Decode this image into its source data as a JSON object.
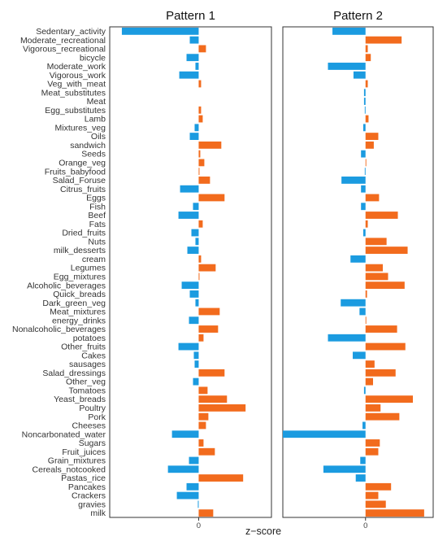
{
  "chart_data": {
    "type": "bar",
    "orientation": "horizontal",
    "xlabel": "z−score",
    "x_tick_label": "0",
    "grid": false,
    "colors": {
      "positive": "#f26b1d",
      "negative": "#1b9be0"
    },
    "categories": [
      "Sedentary_activity",
      "Moderate_recreational",
      "Vigorous_recreational",
      "bicycle",
      "Moderate_work",
      "Vigorous_work",
      "Veg_with_meat",
      "Meat_substitutes",
      "Meat",
      "Egg_substitutes",
      "Lamb",
      "Mixtures_veg",
      "Oils",
      "sandwich",
      "Seeds",
      "Orange_veg",
      "Fruits_babyfood",
      "Salad_Foruse",
      "Citrus_fruits",
      "Eggs",
      "Fish",
      "Beef",
      "Fats",
      "Dried_fruits",
      "Nuts",
      "milk_desserts",
      "cream",
      "Legumes",
      "Egg_mixtures",
      "Alcoholic_beverages",
      "Quick_breads",
      "Dark_green_veg",
      "Meat_mixtures",
      "energy_drinks",
      "Nonalcoholic_beverages",
      "potatoes",
      "Other_fruits",
      "Cakes",
      "sausages",
      "Salad_dressings",
      "Other_veg",
      "Tomatoes",
      "Yeast_breads",
      "Poultry",
      "Pork",
      "Cheeses",
      "Noncarbonated_water",
      "Sugars",
      "Fruit_juices",
      "Grain_mixtures",
      "Cereals_notcooked",
      "Pastas_rice",
      "Pancakes",
      "Crackers",
      "gravies",
      "milk"
    ],
    "panels": [
      {
        "title": "Pattern 1",
        "xlim": [
          -1.1,
          0.9
        ],
        "values": [
          -0.95,
          -0.11,
          0.09,
          -0.15,
          -0.04,
          -0.24,
          0.03,
          0.0,
          0.0,
          0.03,
          0.05,
          -0.05,
          -0.11,
          0.28,
          0.02,
          0.07,
          0.01,
          0.14,
          -0.23,
          0.32,
          -0.07,
          -0.25,
          0.05,
          -0.09,
          -0.04,
          -0.14,
          0.03,
          0.21,
          0.01,
          -0.21,
          -0.11,
          -0.04,
          0.26,
          -0.12,
          0.24,
          0.06,
          -0.25,
          -0.06,
          -0.05,
          0.32,
          -0.07,
          0.11,
          0.35,
          0.58,
          0.12,
          0.09,
          -0.33,
          0.06,
          0.2,
          -0.12,
          -0.38,
          0.55,
          -0.15,
          -0.27,
          -0.01,
          0.18
        ]
      },
      {
        "title": "Pattern 2",
        "xlim": [
          -1.1,
          0.9
        ],
        "values": [
          -0.44,
          0.48,
          0.03,
          0.07,
          -0.5,
          -0.16,
          0.03,
          -0.02,
          -0.02,
          -0.01,
          0.04,
          -0.03,
          0.17,
          0.11,
          -0.06,
          0.01,
          -0.01,
          -0.32,
          -0.06,
          0.18,
          -0.06,
          0.43,
          0.03,
          -0.03,
          0.28,
          0.56,
          -0.2,
          0.23,
          0.3,
          0.52,
          0.02,
          -0.33,
          -0.08,
          0.01,
          0.42,
          -0.5,
          0.53,
          -0.17,
          0.12,
          0.4,
          0.1,
          -0.02,
          0.63,
          0.2,
          0.45,
          -0.04,
          -1.1,
          0.19,
          0.17,
          -0.07,
          -0.56,
          -0.13,
          0.34,
          0.17,
          0.27,
          0.78
        ]
      }
    ]
  }
}
